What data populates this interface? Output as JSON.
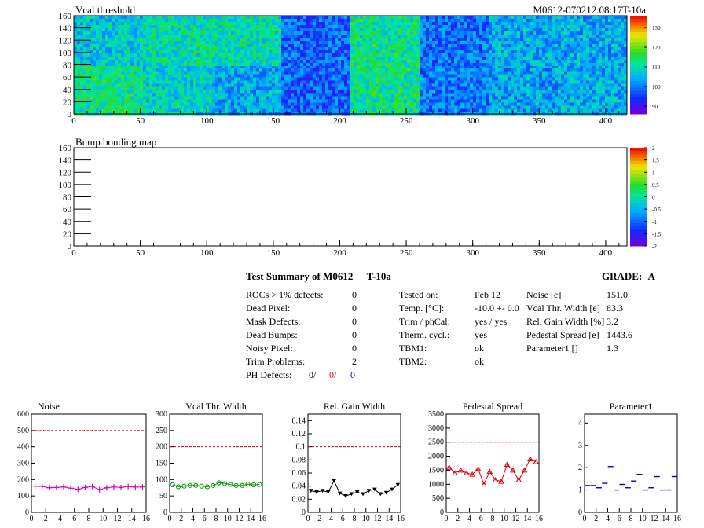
{
  "maps": [
    {
      "title": "Vcal threshold",
      "id": "M0612-070212.08:17T-10a",
      "xticks": [
        0,
        50,
        100,
        150,
        200,
        250,
        300,
        350,
        400
      ],
      "yticks": [
        0,
        20,
        40,
        60,
        80,
        100,
        120,
        140,
        160
      ],
      "palette_labels": [
        "130",
        "120",
        "110",
        "100",
        "90"
      ],
      "palette_values": [
        130,
        120,
        110,
        100,
        90
      ],
      "palette_range": [
        86,
        136
      ],
      "roc_means": [
        [
          112,
          108,
          104,
          98,
          112,
          100,
          103,
          104
        ],
        [
          107,
          110,
          110,
          98,
          112,
          99,
          104,
          104
        ]
      ]
    },
    {
      "title": "Bump bonding map",
      "xticks": [
        0,
        50,
        100,
        150,
        200,
        250,
        300,
        350,
        400
      ],
      "yticks": [
        0,
        20,
        40,
        60,
        80,
        100,
        120,
        140,
        160
      ],
      "palette_labels": [
        "2",
        "1.5",
        "1",
        "0.5",
        "0",
        "-0.5",
        "-1",
        "-1.5",
        "-2"
      ],
      "palette_values": [
        2,
        1.5,
        1,
        0.5,
        0,
        -0.5,
        -1,
        -1.5,
        -2
      ],
      "palette_range": [
        -2,
        2
      ]
    }
  ],
  "summary": {
    "heading": "Test Summary of M0612",
    "temp_tag": "T-10a",
    "grade_label": "GRADE:",
    "grade": "A",
    "defects": [
      {
        "label": "ROCs > 1% defects:",
        "value": "0"
      },
      {
        "label": "Dead Pixel:",
        "value": "0"
      },
      {
        "label": "Mask Defects:",
        "value": "0"
      },
      {
        "label": "Dead Bumps:",
        "value": "0"
      },
      {
        "label": "Noisy Pixel:",
        "value": "0"
      },
      {
        "label": "Trim Problems:",
        "value": "2"
      }
    ],
    "ph_label": "PH Defects:",
    "ph_values": [
      {
        "v": "0/",
        "color": "#000000"
      },
      {
        "v": "0/",
        "color": "#ff0000"
      },
      {
        "v": "0",
        "color": "#0000cc"
      }
    ],
    "conditions": [
      {
        "label": "Tested on:",
        "value": "Feb 12"
      },
      {
        "label": "Temp. [°C]:",
        "value": "-10.0 +- 0.0"
      },
      {
        "label": "Trim / phCal:",
        "value": "yes / yes"
      },
      {
        "label": "Therm. cycl.:",
        "value": "yes"
      },
      {
        "label": "TBM1:",
        "value": "ok"
      },
      {
        "label": "TBM2:",
        "value": "ok"
      }
    ],
    "results": [
      {
        "label": "Noise [e]",
        "value": "151.0"
      },
      {
        "label": "Vcal Thr. Width [e]",
        "value": "83.3"
      },
      {
        "label": "Rel. Gain Width [%]",
        "value": "3.2"
      },
      {
        "label": "Pedestal Spread [e]",
        "value": "1443.6"
      },
      {
        "label": "Parameter1 []",
        "value": "1.3"
      }
    ]
  },
  "chart_data": [
    {
      "type": "line",
      "title": "Noise",
      "xlim": [
        0,
        16
      ],
      "ylim": [
        0,
        600
      ],
      "xticks": [
        0,
        2,
        4,
        6,
        8,
        10,
        12,
        14,
        16
      ],
      "yticks": [
        0,
        100,
        200,
        300,
        400,
        500,
        600
      ],
      "limit": 500,
      "marker": "cross",
      "color": "#cc00cc",
      "values": [
        160,
        158,
        150,
        152,
        155,
        148,
        140,
        152,
        158,
        138,
        150,
        155,
        152,
        158,
        154,
        155
      ]
    },
    {
      "type": "line",
      "title": "Vcal Thr. Width",
      "xlim": [
        0,
        16
      ],
      "ylim": [
        0,
        300
      ],
      "xticks": [
        0,
        2,
        4,
        6,
        8,
        10,
        12,
        14,
        16
      ],
      "yticks": [
        0,
        50,
        100,
        150,
        200,
        250,
        300
      ],
      "limit": 200,
      "marker": "circle",
      "color": "#009900",
      "values": [
        84,
        78,
        80,
        82,
        82,
        80,
        78,
        82,
        90,
        88,
        85,
        82,
        82,
        86,
        84,
        85
      ]
    },
    {
      "type": "line",
      "title": "Rel. Gain Width",
      "xlim": [
        0,
        16
      ],
      "ylim": [
        0,
        0.15
      ],
      "xticks": [
        0,
        2,
        4,
        6,
        8,
        10,
        12,
        14,
        16
      ],
      "yticks": [
        0,
        0.02,
        0.04,
        0.06,
        0.08,
        0.1,
        0.12,
        0.14
      ],
      "limit": 0.1,
      "marker": "triangle-down",
      "color": "#000000",
      "values": [
        0.033,
        0.031,
        0.033,
        0.031,
        0.048,
        0.029,
        0.025,
        0.028,
        0.031,
        0.028,
        0.033,
        0.035,
        0.028,
        0.03,
        0.035,
        0.042
      ]
    },
    {
      "type": "line",
      "title": "Pedestal Spread",
      "xlim": [
        0,
        16
      ],
      "ylim": [
        0,
        3500
      ],
      "xticks": [
        0,
        2,
        4,
        6,
        8,
        10,
        12,
        14,
        16
      ],
      "yticks": [
        0,
        500,
        1000,
        1500,
        2000,
        2500,
        3000,
        3500
      ],
      "limit": 2500,
      "marker": "triangle-up",
      "color": "#dd0000",
      "values": [
        1600,
        1400,
        1500,
        1400,
        1350,
        1550,
        1000,
        1450,
        1150,
        1100,
        1700,
        1500,
        1150,
        1500,
        1900,
        1800
      ]
    },
    {
      "type": "scatter",
      "title": "Parameter1",
      "xlim": [
        0,
        16
      ],
      "ylim": [
        0,
        4.4
      ],
      "xticks": [
        0,
        2,
        4,
        6,
        8,
        10,
        12,
        14,
        16
      ],
      "yticks": [
        0,
        1,
        2,
        3,
        4
      ],
      "marker": "dash",
      "color": "#0000cc",
      "values": [
        1.2,
        1.2,
        1.1,
        1.3,
        2.05,
        1.0,
        1.25,
        1.1,
        1.4,
        1.7,
        1.0,
        1.1,
        1.6,
        1.0,
        1.0,
        1.6
      ]
    }
  ]
}
